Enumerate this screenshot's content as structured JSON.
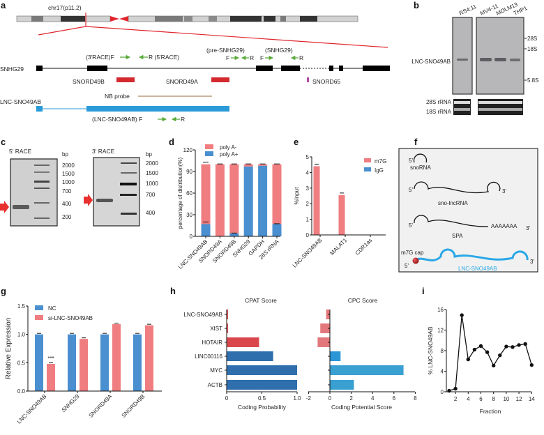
{
  "panel_labels": {
    "a": "a",
    "b": "b",
    "c": "c",
    "d": "d",
    "e": "e",
    "f": "f",
    "g": "g",
    "h": "h",
    "i": "i"
  },
  "panel_a": {
    "chromosome_label": "chr17(p11.2)",
    "gene_label": "SNHG29",
    "primer_3race_f": "(3'RACE)F",
    "primer_5race_r": "R (5'RACE)",
    "pre_snhg29_title": "(pre-SNHG29)",
    "pre_snhg29_f": "F",
    "pre_snhg29_r": "R",
    "snhg29_title": "(SNHG29)",
    "snhg29_f": "F",
    "snhg29_r": "R",
    "snord49b": "SNORD49B",
    "snord49a": "SNORD49A",
    "snord65": "SNORD65",
    "nb_probe": "NB probe",
    "lnc_label": "LNC-SNO49AB",
    "lnc_primer_f": "(LNC-SNO49AB) F",
    "lnc_primer_r": "R",
    "colors": {
      "highlight": "#e0252b",
      "snord": "#d42a2f",
      "snord65": "#b04aa0",
      "lnc": "#2a9ad8",
      "probe": "#9a6a3a",
      "primer": "#5aab3a"
    }
  },
  "panel_b": {
    "lanes": [
      "RS4;11",
      "MV4-11",
      "MOLM13",
      "THP1"
    ],
    "markers": [
      "28S",
      "18S",
      "5.8S"
    ],
    "band_label": "LNC-SNO49AB",
    "rrna_28s": "28S rRNA",
    "rrna_18s": "18S rRNA"
  },
  "panel_c": {
    "race5_title": "5' RACE",
    "race3_title": "3' RACE",
    "bp_label": "bp",
    "ladder5": [
      "2000",
      "1500",
      "1000",
      "700",
      "400",
      "200"
    ],
    "ladder3": [
      "2000",
      "1500",
      "1000",
      "700",
      "400"
    ]
  },
  "panel_f": {
    "snorna": "snoRNA",
    "sno_lncrna": "sno-lncRNA",
    "spa": "SPA",
    "polya": "AAAAAAA",
    "cap": "m7G cap",
    "lnc": "LNC-SNO49AB",
    "five": "5'",
    "three": "3'"
  },
  "chart_data": [
    {
      "panel": "d",
      "type": "bar",
      "stacked": true,
      "categories": [
        "LNC-SNO49AB",
        "SNORD49A",
        "SNORD49B",
        "SNHG29",
        "GAPDH",
        "28S rRNA"
      ],
      "series": [
        {
          "name": "poly A-",
          "color": "#f07d80",
          "values": [
            83,
            100,
            96,
            3,
            2,
            83
          ]
        },
        {
          "name": "poly A+",
          "color": "#4a8fcf",
          "values": [
            17,
            0,
            4,
            97,
            98,
            17
          ]
        }
      ],
      "ylabel": "percentage of distribution(%)",
      "ylim": [
        0,
        120
      ],
      "yticks": [
        0,
        30,
        60,
        90,
        120
      ],
      "legend": "top-left"
    },
    {
      "panel": "e",
      "type": "bar",
      "categories": [
        "LNC-SNO49AB",
        "MALAT1",
        "CDR1as"
      ],
      "series": [
        {
          "name": "m7G",
          "color": "#f07d80",
          "values": [
            4.4,
            2.55,
            0.02
          ]
        },
        {
          "name": "IgG",
          "color": "#4a8fcf",
          "values": [
            0.01,
            0.01,
            0.02
          ]
        }
      ],
      "ylabel": "%Input",
      "ylim": [
        0,
        5
      ],
      "yticks": [
        0,
        1,
        2,
        3,
        4,
        5
      ],
      "legend": "top-right"
    },
    {
      "panel": "g",
      "type": "bar",
      "categories": [
        "LNC-SNO49AB",
        "SNHG29",
        "SNORD49A",
        "SNORD49B"
      ],
      "series": [
        {
          "name": "NC",
          "color": "#4a8fcf",
          "values": [
            1.0,
            1.0,
            1.0,
            1.0
          ]
        },
        {
          "name": "si-LNC-SNO49AB",
          "color": "#f07d80",
          "values": [
            0.48,
            0.92,
            1.18,
            1.16
          ]
        }
      ],
      "annotations": [
        {
          "category": "LNC-SNO49AB",
          "text": "***"
        }
      ],
      "ylabel": "Relative Expression",
      "ylim": [
        0,
        1.5
      ],
      "yticks": [
        "0.0",
        "0.5",
        "1.0",
        "1.5"
      ],
      "legend": "top-left"
    },
    {
      "panel": "h",
      "type": "bar",
      "orientation": "horizontal",
      "title": "CPAT Score",
      "categories": [
        "LNC-SNO49AB",
        "XIST",
        "HOTAIR",
        "LINC00116",
        "MYC",
        "ACTB"
      ],
      "values": [
        0.02,
        0.02,
        0.46,
        0.66,
        1.0,
        1.0
      ],
      "colors": [
        "#e0555a",
        "#e0555a",
        "#d9474c",
        "#2f6fae",
        "#2f6fae",
        "#2f6fae"
      ],
      "xlabel": "Coding Probability",
      "xlim": [
        0,
        1.0
      ],
      "xticks": [
        "0",
        "0.5",
        "1.0"
      ]
    },
    {
      "panel": "h",
      "type": "bar",
      "orientation": "horizontal",
      "title": "CPC Score",
      "categories": [
        "LNC-SNO49AB",
        "XIST",
        "HOTAIR",
        "LINC00116",
        "MYC",
        "ACTB"
      ],
      "values": [
        -0.35,
        -0.9,
        -1.15,
        1.0,
        6.9,
        2.25
      ],
      "colors": [
        "#e3787c",
        "#e3787c",
        "#e3787c",
        "#2a96d6",
        "#3aa0d2",
        "#3aa0d2"
      ],
      "xlabel": "Coding Potential Score",
      "xlim": [
        -2,
        8
      ],
      "xticks": [
        "-2",
        "0",
        "2",
        "4",
        "6",
        "8"
      ]
    },
    {
      "panel": "i",
      "type": "line",
      "x": [
        1,
        2,
        3,
        4,
        5,
        6,
        7,
        8,
        9,
        10,
        11,
        12,
        13,
        14
      ],
      "y": [
        0.2,
        0.6,
        14.9,
        6.3,
        8.2,
        8.9,
        7.7,
        5.1,
        7.1,
        8.8,
        8.7,
        9.1,
        9.3,
        5.2
      ],
      "xlabel": "Fraction",
      "ylabel": "% LNC-SNO49AB",
      "xlim": [
        1,
        14
      ],
      "ylim": [
        0,
        16
      ],
      "xticks": [
        2,
        4,
        6,
        8,
        10,
        12,
        14
      ],
      "yticks": [
        0,
        4,
        8,
        12,
        16
      ]
    }
  ]
}
